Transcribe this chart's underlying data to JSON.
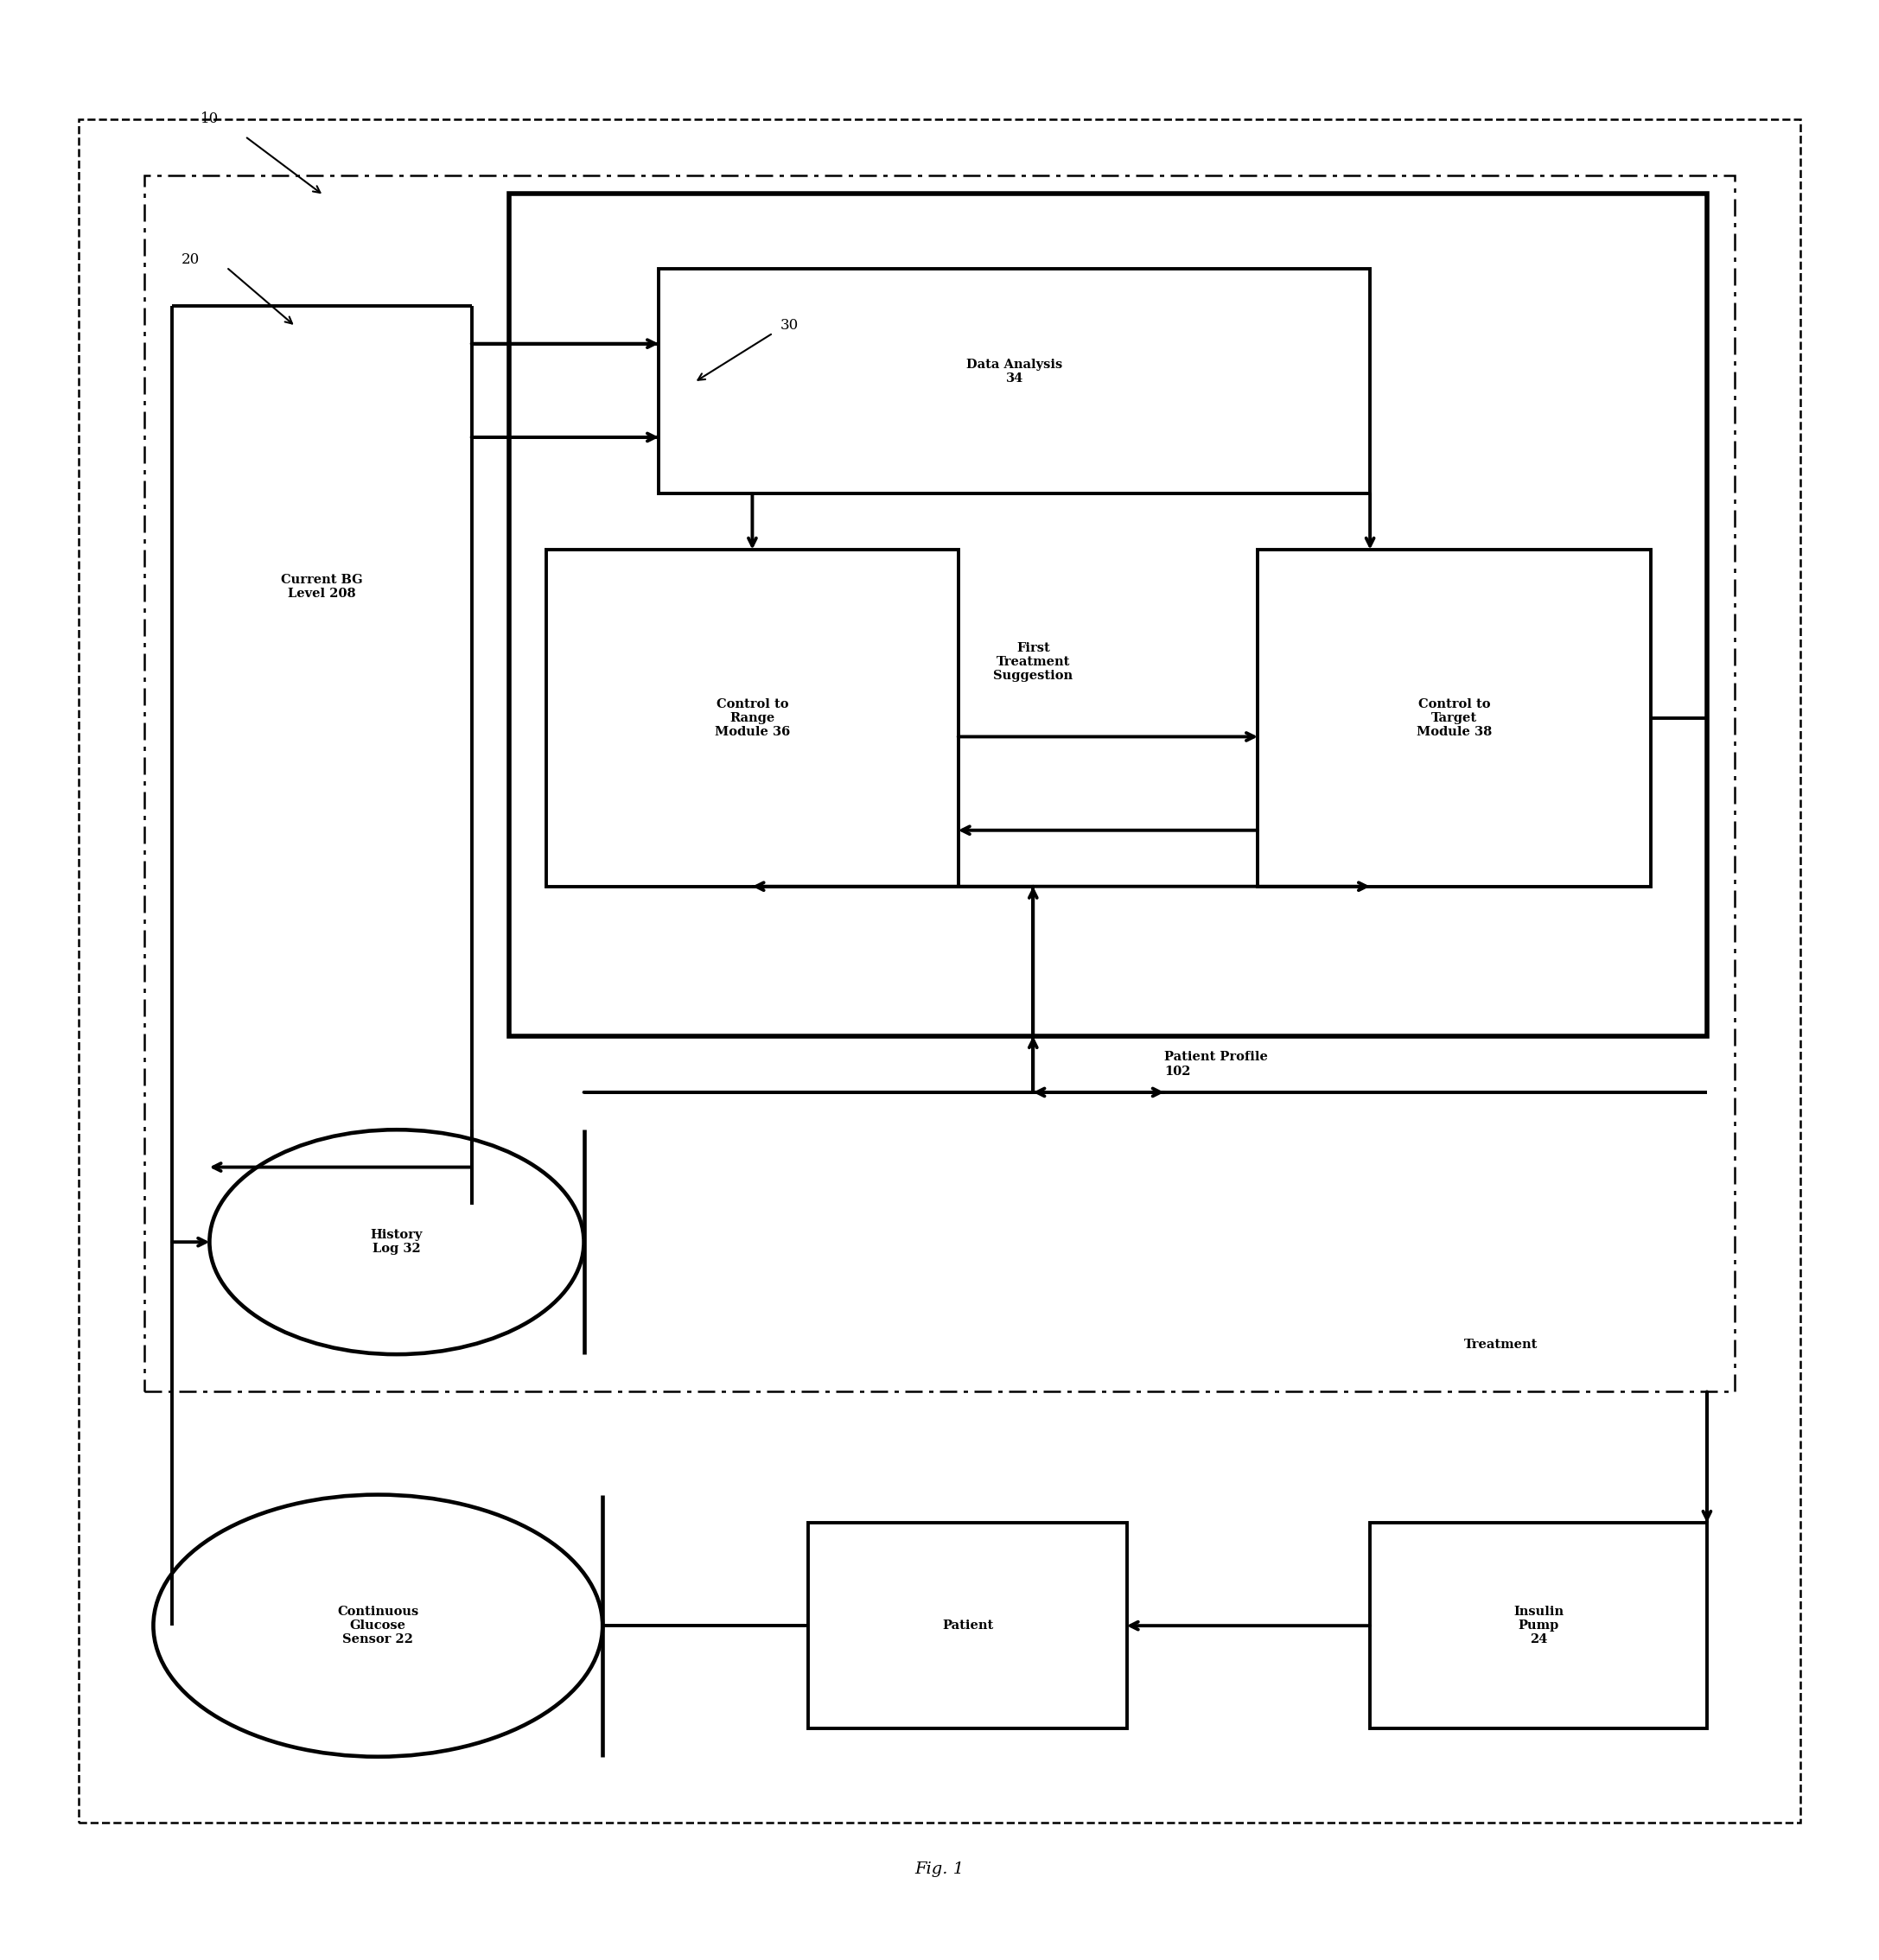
{
  "fig_width": 21.74,
  "fig_height": 22.68,
  "background_color": "#ffffff",
  "fig_label": "Fig. 1",
  "labels": {
    "ref10": "10",
    "ref20": "20",
    "ref30": "30",
    "current_bg": "Current BG\nLevel 208",
    "data_analysis": "Data Analysis\n34",
    "control_range": "Control to\nRange\nModule 36",
    "first_treatment": "First\nTreatment\nSuggestion",
    "control_target": "Control to\nTarget\nModule 38",
    "history_log": "History\nLog 32",
    "patient_profile": "Patient Profile\n102",
    "treatment": "Treatment",
    "continuous_glucose": "Continuous\nGlucose\nSensor 22",
    "patient": "Patient",
    "insulin_pump": "Insulin\nPump\n24"
  }
}
